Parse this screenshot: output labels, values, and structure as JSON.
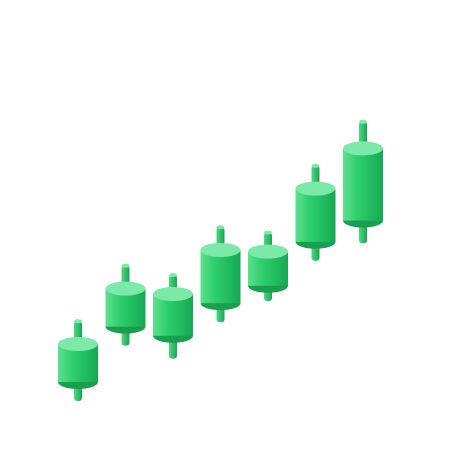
{
  "illustration": {
    "subject": "candlestick-chart-3d-icon",
    "colors": {
      "body_light": "#5fe08f",
      "body_mid": "#2fcf6e",
      "body_dark": "#16a852",
      "wick_light": "#52d784",
      "wick_dark": "#17a653",
      "top_face": "#7ce9a8",
      "bottom_face": "#1a9e50"
    },
    "candles": [
      {
        "name": "candle-1",
        "open": 1,
        "close": 2,
        "high": 2.6,
        "low": 0.5
      },
      {
        "name": "candle-2",
        "open": 2.3,
        "close": 3.3,
        "high": 3.9,
        "low": 1.8
      },
      {
        "name": "candle-3",
        "open": 1.9,
        "close": 3.0,
        "high": 3.5,
        "low": 1.3
      },
      {
        "name": "candle-4",
        "open": 2.6,
        "close": 4.0,
        "high": 4.6,
        "low": 2.1
      },
      {
        "name": "candle-5",
        "open": 2.9,
        "close": 3.8,
        "high": 4.3,
        "low": 2.5
      },
      {
        "name": "candle-6",
        "open": 3.9,
        "close": 5.3,
        "high": 5.9,
        "low": 3.4
      },
      {
        "name": "candle-7",
        "open": 4.3,
        "close": 6.2,
        "high": 6.9,
        "low": 3.7
      }
    ]
  }
}
